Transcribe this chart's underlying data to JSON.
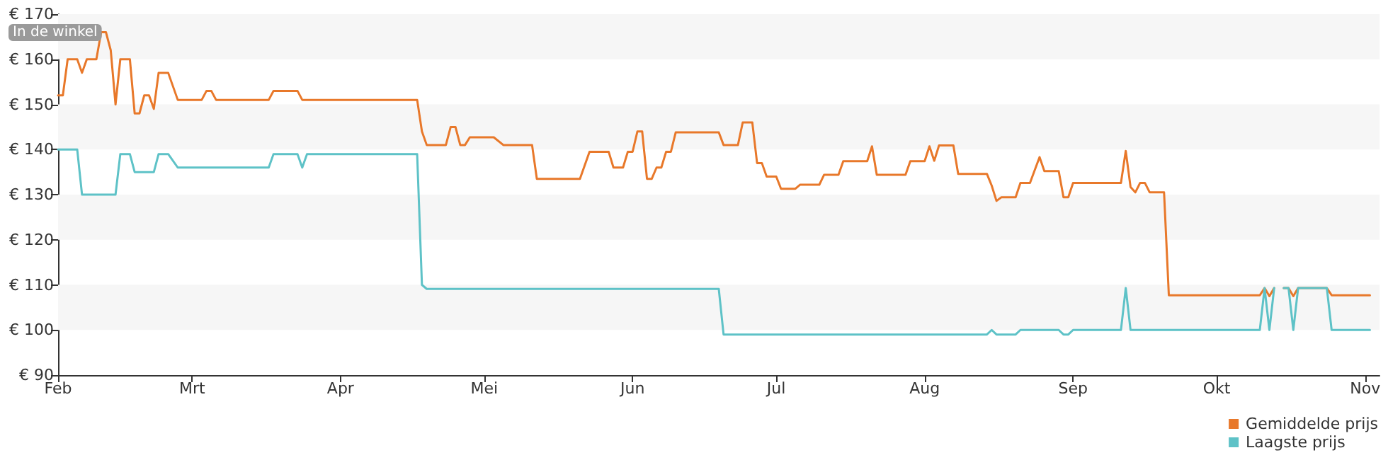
{
  "chart_data": {
    "type": "line",
    "x": [
      "--02-01",
      "--02-02",
      "--02-03",
      "--02-05",
      "--02-06",
      "--02-07",
      "--02-09",
      "--02-10",
      "--02-11",
      "--02-12",
      "--02-13",
      "--02-14",
      "--02-16",
      "--02-17",
      "--02-18",
      "--02-19",
      "--02-20",
      "--02-21",
      "--02-22",
      "--02-24",
      "--02-26",
      "--03-03",
      "--03-04",
      "--03-05",
      "--03-06",
      "--03-17",
      "--03-18",
      "--03-23",
      "--03-24",
      "--03-25",
      "--04-17",
      "--04-18",
      "--04-19",
      "--04-23",
      "--04-24",
      "--04-25",
      "--04-26",
      "--04-27",
      "--04-28",
      "--05-03",
      "--05-05",
      "--05-11",
      "--05-12",
      "--05-21",
      "--05-23",
      "--05-27",
      "--05-28",
      "--05-30",
      "--05-31",
      "--06-01",
      "--06-02",
      "--06-03",
      "--06-04",
      "--06-05",
      "--06-06",
      "--06-07",
      "--06-08",
      "--06-09",
      "--06-10",
      "--06-19",
      "--06-20",
      "--06-23",
      "--06-24",
      "--06-26",
      "--06-27",
      "--06-28",
      "--06-29",
      "--07-01",
      "--07-02",
      "--07-05",
      "--07-06",
      "--07-10",
      "--07-11",
      "--07-14",
      "--07-15",
      "--07-20",
      "--07-21",
      "--07-22",
      "--07-28",
      "--07-29",
      "--08-01",
      "--08-02",
      "--08-03",
      "--08-04",
      "--08-07",
      "--08-08",
      "--08-14",
      "--08-15",
      "--08-16",
      "--08-17",
      "--08-20",
      "--08-21",
      "--08-23",
      "--08-25",
      "--08-26",
      "--08-29",
      "--08-30",
      "--08-31",
      "--09-01",
      "--09-11",
      "--09-12",
      "--09-13",
      "--09-14",
      "--09-15",
      "--09-16",
      "--09-17",
      "--09-20",
      "--09-21",
      "--10-10",
      "--10-11",
      "--10-12",
      "--10-13",
      "--10-14",
      "--10-15",
      "--10-16",
      "--10-17",
      "--10-18",
      "--10-24",
      "--10-25",
      "--11-02"
    ],
    "series": [
      {
        "name": "Gemiddelde prijs",
        "color": "#e8782a",
        "values": [
          152,
          152,
          160,
          160,
          157,
          160,
          160,
          166,
          166,
          162,
          150,
          160,
          160,
          148,
          148,
          152,
          152,
          149,
          157,
          157,
          151,
          151,
          153,
          153,
          151,
          151,
          153,
          153,
          151,
          151,
          151,
          144,
          141,
          141,
          145,
          145,
          141,
          141,
          142.7,
          142.7,
          141,
          141,
          133.5,
          133.5,
          139.5,
          139.5,
          136,
          136,
          139.5,
          139.5,
          144,
          144,
          133.5,
          133.5,
          136,
          136,
          139.5,
          139.5,
          143.8,
          143.8,
          141,
          141,
          146,
          146,
          137,
          137,
          134,
          134,
          131.3,
          131.3,
          132.2,
          132.2,
          134.4,
          134.4,
          137.4,
          137.4,
          140.7,
          134.4,
          134.4,
          137.4,
          137.4,
          140.7,
          137.5,
          140.9,
          140.9,
          134.6,
          134.6,
          132,
          128.6,
          129.4,
          129.4,
          132.6,
          132.6,
          138.3,
          135.2,
          135.2,
          129.4,
          129.4,
          132.6,
          132.6,
          139.7,
          131.7,
          130.5,
          132.6,
          132.6,
          130.5,
          130.5,
          107.7,
          107.7,
          109.3,
          107.5,
          109.3,
          null,
          109.3,
          109.3,
          107.5,
          109.3,
          109.3,
          107.7,
          107.7
        ]
      },
      {
        "name": "Laagste prijs",
        "color": "#5ec2c7",
        "values": [
          140,
          140,
          140,
          140,
          130,
          130,
          130,
          130,
          130,
          130,
          130,
          139,
          139,
          135,
          135,
          135,
          135,
          135,
          139,
          139,
          136,
          136,
          136,
          136,
          136,
          136,
          139,
          139,
          136,
          139,
          139,
          110,
          109.1,
          109.1,
          109.1,
          109.1,
          109.1,
          109.1,
          109.1,
          109.1,
          109.1,
          109.1,
          109.1,
          109.1,
          109.1,
          109.1,
          109.1,
          109.1,
          109.1,
          109.1,
          109.1,
          109.1,
          109.1,
          109.1,
          109.1,
          109.1,
          109.1,
          109.1,
          109.1,
          109.1,
          99,
          99,
          99,
          99,
          99,
          99,
          99,
          99,
          99,
          99,
          99,
          99,
          99,
          99,
          99,
          99,
          99,
          99,
          99,
          99,
          99,
          99,
          99,
          99,
          99,
          99,
          99,
          100,
          99,
          99,
          99,
          100,
          100,
          100,
          100,
          100,
          99,
          99,
          100,
          100,
          109.3,
          100,
          100,
          100,
          100,
          100,
          100,
          100,
          100,
          109.3,
          100,
          109.3,
          null,
          109.3,
          109.3,
          100,
          109.3,
          109.3,
          100,
          100
        ]
      }
    ],
    "xlim": [
      "--02-01",
      "--11-04"
    ],
    "xticks": [
      {
        "value": "--02-01",
        "label": "Feb"
      },
      {
        "value": "--03-01",
        "label": "Mrt"
      },
      {
        "value": "--04-01",
        "label": "Apr"
      },
      {
        "value": "--05-01",
        "label": "Mei"
      },
      {
        "value": "--06-01",
        "label": "Jun"
      },
      {
        "value": "--07-01",
        "label": "Jul"
      },
      {
        "value": "--08-01",
        "label": "Aug"
      },
      {
        "value": "--09-01",
        "label": "Sep"
      },
      {
        "value": "--10-01",
        "label": "Okt"
      },
      {
        "value": "--11-01",
        "label": "Nov"
      }
    ],
    "ylim": [
      90,
      170
    ],
    "yticks": [
      {
        "value": 90,
        "label": "€ 90"
      },
      {
        "value": 100,
        "label": "€ 100"
      },
      {
        "value": 110,
        "label": "€ 110"
      },
      {
        "value": 120,
        "label": "€ 120"
      },
      {
        "value": 130,
        "label": "€ 130"
      },
      {
        "value": 140,
        "label": "€ 140"
      },
      {
        "value": 150,
        "label": "€ 150"
      },
      {
        "value": 160,
        "label": "€ 160"
      },
      {
        "value": 170,
        "label": "€ 170"
      }
    ],
    "bands": [
      {
        "axis": "y",
        "from": 100,
        "to": 110,
        "color": "#f6f6f6"
      },
      {
        "axis": "y",
        "from": 120,
        "to": 130,
        "color": "#f6f6f6"
      },
      {
        "axis": "y",
        "from": 140,
        "to": 150,
        "color": "#f6f6f6"
      },
      {
        "axis": "y",
        "from": 160,
        "to": 170,
        "color": "#f6f6f6"
      }
    ],
    "legend": "bottom right",
    "marker": "none",
    "annotations": [
      "In de winkel"
    ]
  }
}
